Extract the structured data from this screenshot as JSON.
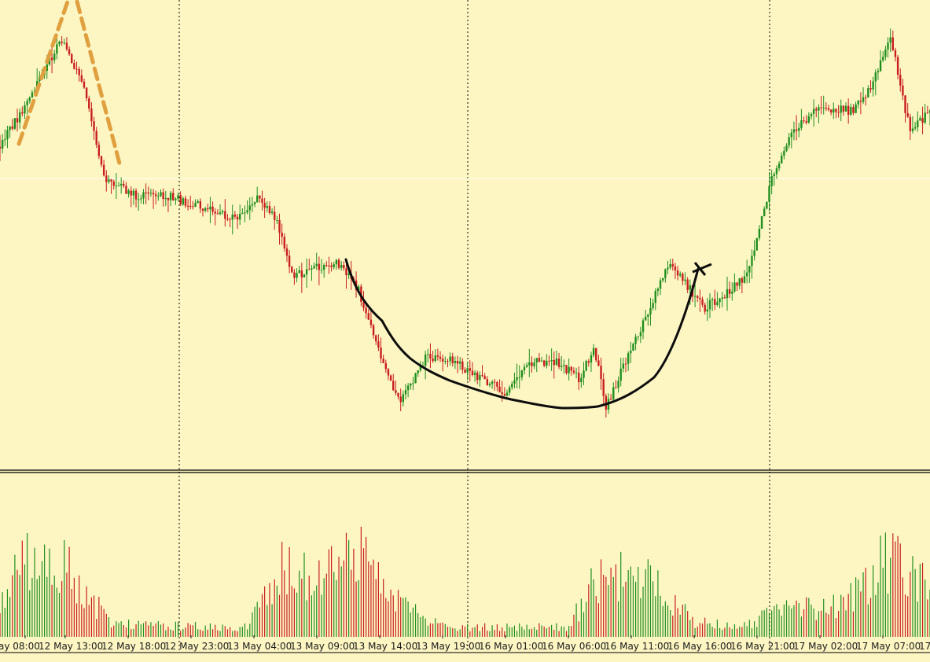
{
  "colors": {
    "background": "#fdf6c3",
    "bull": "#1f8f1f",
    "bear": "#c81e1e",
    "separator": "#000000",
    "grid": "#000000",
    "trend_curve": "#0d0d0d",
    "peak_lines": "#e0a040",
    "axis_text": "#1a1a1a"
  },
  "chart_data": [
    {
      "type": "candlestick",
      "title": "",
      "xlabel": "",
      "ylabel": "",
      "y_axis_labels_visible": false,
      "grid": "vertical dotted session separators",
      "x_tick_labels": [
        "ay 08:00",
        "12 May 13:00",
        "12 May 18:00",
        "12 May 23:00",
        "13 May 04:00",
        "13 May 09:00",
        "13 May 14:00",
        "13 May 19:00",
        "16 May 01:00",
        "16 May 06:00",
        "16 May 11:00",
        "16 May 16:00",
        "16 May 21:00",
        "17 May 02:00",
        "17 May 07:00",
        "17"
      ],
      "session_separators": [
        "12 May 22:00",
        "13 May 23:00",
        "16 May 23:00"
      ],
      "price_path_keypoints": [
        {
          "t": 0,
          "p": 0.31
        },
        {
          "t": 12,
          "p": 0.2
        },
        {
          "t": 25,
          "p": 0.07
        },
        {
          "t": 34,
          "p": 0.18
        },
        {
          "t": 42,
          "p": 0.38
        },
        {
          "t": 55,
          "p": 0.42
        },
        {
          "t": 68,
          "p": 0.42
        },
        {
          "t": 85,
          "p": 0.45
        },
        {
          "t": 95,
          "p": 0.47
        },
        {
          "t": 105,
          "p": 0.42
        },
        {
          "t": 112,
          "p": 0.48
        },
        {
          "t": 118,
          "p": 0.6
        },
        {
          "t": 128,
          "p": 0.58
        },
        {
          "t": 138,
          "p": 0.57
        },
        {
          "t": 145,
          "p": 0.63
        },
        {
          "t": 155,
          "p": 0.8
        },
        {
          "t": 162,
          "p": 0.88
        },
        {
          "t": 172,
          "p": 0.78
        },
        {
          "t": 182,
          "p": 0.78
        },
        {
          "t": 192,
          "p": 0.82
        },
        {
          "t": 205,
          "p": 0.86
        },
        {
          "t": 215,
          "p": 0.79
        },
        {
          "t": 225,
          "p": 0.79
        },
        {
          "t": 235,
          "p": 0.83
        },
        {
          "t": 240,
          "p": 0.75
        },
        {
          "t": 245,
          "p": 0.89
        },
        {
          "t": 252,
          "p": 0.8
        },
        {
          "t": 262,
          "p": 0.68
        },
        {
          "t": 270,
          "p": 0.57
        },
        {
          "t": 275,
          "p": 0.6
        },
        {
          "t": 285,
          "p": 0.67
        },
        {
          "t": 295,
          "p": 0.63
        },
        {
          "t": 302,
          "p": 0.6
        },
        {
          "t": 312,
          "p": 0.38
        },
        {
          "t": 318,
          "p": 0.3
        },
        {
          "t": 330,
          "p": 0.22
        },
        {
          "t": 345,
          "p": 0.23
        },
        {
          "t": 352,
          "p": 0.18
        },
        {
          "t": 360,
          "p": 0.06
        },
        {
          "t": 368,
          "p": 0.28
        },
        {
          "t": 376,
          "p": 0.23
        }
      ],
      "volume_path_keypoints": [
        {
          "t": 0,
          "v": 0.25
        },
        {
          "t": 15,
          "v": 0.55
        },
        {
          "t": 30,
          "v": 0.4
        },
        {
          "t": 45,
          "v": 0.08
        },
        {
          "t": 100,
          "v": 0.06
        },
        {
          "t": 115,
          "v": 0.45
        },
        {
          "t": 130,
          "v": 0.35
        },
        {
          "t": 145,
          "v": 0.55
        },
        {
          "t": 160,
          "v": 0.22
        },
        {
          "t": 180,
          "v": 0.06
        },
        {
          "t": 230,
          "v": 0.06
        },
        {
          "t": 240,
          "v": 0.35
        },
        {
          "t": 260,
          "v": 0.4
        },
        {
          "t": 280,
          "v": 0.1
        },
        {
          "t": 300,
          "v": 0.06
        },
        {
          "t": 315,
          "v": 0.18
        },
        {
          "t": 340,
          "v": 0.2
        },
        {
          "t": 350,
          "v": 0.35
        },
        {
          "t": 362,
          "v": 0.55
        },
        {
          "t": 376,
          "v": 0.3
        }
      ],
      "bar_count": 377,
      "annotations": [
        {
          "kind": "dashed-peak-lines",
          "color": "orange"
        },
        {
          "kind": "rounded-bottom-curve",
          "color": "black",
          "end_marker": "x"
        }
      ]
    }
  ]
}
